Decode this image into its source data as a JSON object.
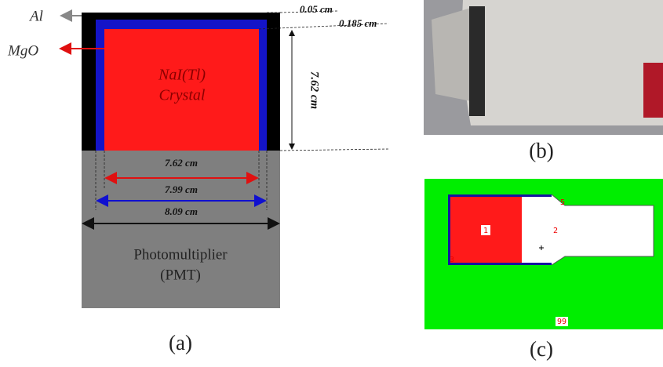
{
  "panel_a": {
    "al": "Al",
    "mgo": "MgO",
    "crystal_1": "NaI(Tl)",
    "crystal_2": "Crystal",
    "dim_al": "0.05 cm",
    "dim_mgo": "0.185 cm",
    "dim_height": "7.62 cm",
    "dim_crystal": "7.62 cm",
    "dim_mgo_width": "7.99 cm",
    "dim_al_width": "8.09 cm",
    "pmt_1": "Photomultiplier",
    "pmt_2": "(PMT)",
    "caption": "(a)"
  },
  "panel_b": {
    "caption": "(b)"
  },
  "panel_c": {
    "region_1": "1",
    "region_2": "2",
    "region_3": "3",
    "region_5": "5",
    "region_99": "99",
    "caption": "(c)"
  }
}
